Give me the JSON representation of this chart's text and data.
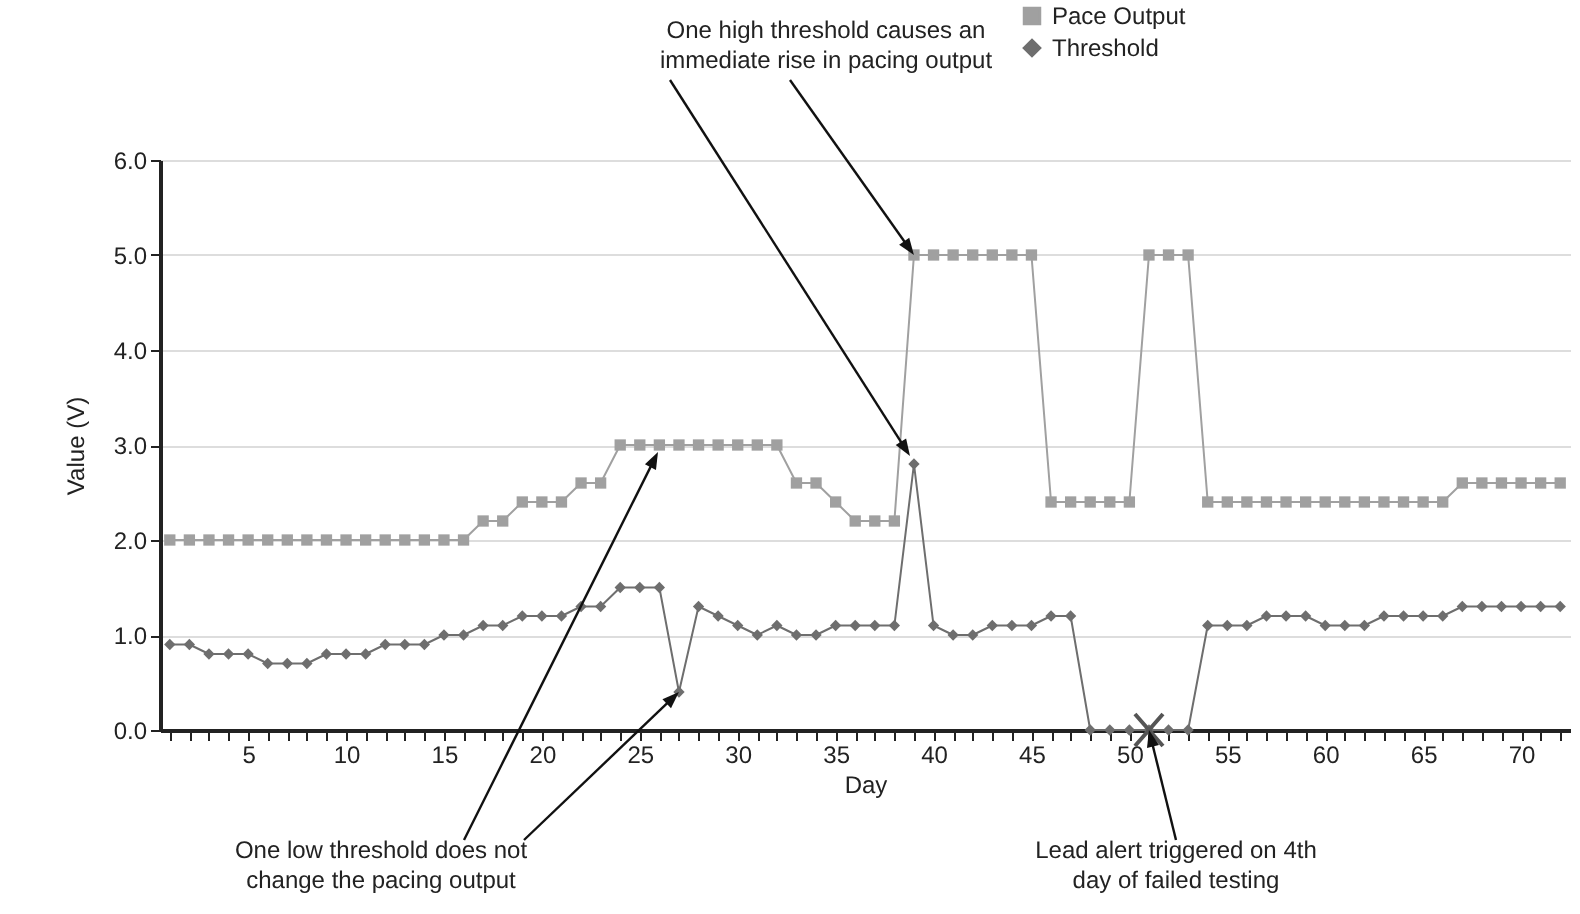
{
  "chart_data": {
    "type": "line",
    "xlabel": "Day",
    "ylabel": "Value (V)",
    "legend": "top right",
    "grid": "y",
    "x": [
      1,
      2,
      3,
      4,
      5,
      6,
      7,
      8,
      9,
      10,
      11,
      12,
      13,
      14,
      15,
      16,
      17,
      18,
      19,
      20,
      21,
      22,
      23,
      24,
      25,
      26,
      27,
      28,
      29,
      30,
      31,
      32,
      33,
      34,
      35,
      36,
      37,
      38,
      39,
      40,
      41,
      42,
      43,
      44,
      45,
      46,
      47,
      48,
      49,
      50,
      51,
      52,
      53,
      54,
      55,
      56,
      57,
      58,
      59,
      60,
      61,
      62,
      63,
      64,
      65,
      66,
      67,
      68,
      69,
      70,
      71,
      72
    ],
    "xlim": [
      0.5,
      72.5
    ],
    "xticks": [
      {
        "value": 1,
        "label": null
      },
      {
        "value": 2,
        "label": null
      },
      {
        "value": 3,
        "label": null
      },
      {
        "value": 4,
        "label": null
      },
      5,
      {
        "value": 6,
        "label": null
      },
      {
        "value": 7,
        "label": null
      },
      {
        "value": 8,
        "label": null
      },
      {
        "value": 9,
        "label": null
      },
      10,
      {
        "value": 11,
        "label": null
      },
      {
        "value": 12,
        "label": null
      },
      {
        "value": 13,
        "label": null
      },
      {
        "value": 14,
        "label": null
      },
      15,
      {
        "value": 16,
        "label": null
      },
      {
        "value": 17,
        "label": null
      },
      {
        "value": 18,
        "label": null
      },
      {
        "value": 19,
        "label": null
      },
      20,
      {
        "value": 21,
        "label": null
      },
      {
        "value": 22,
        "label": null
      },
      {
        "value": 23,
        "label": null
      },
      {
        "value": 24,
        "label": null
      },
      25,
      {
        "value": 26,
        "label": null
      },
      {
        "value": 27,
        "label": null
      },
      {
        "value": 28,
        "label": null
      },
      {
        "value": 29,
        "label": null
      },
      30,
      {
        "value": 31,
        "label": null
      },
      {
        "value": 32,
        "label": null
      },
      {
        "value": 33,
        "label": null
      },
      {
        "value": 34,
        "label": null
      },
      35,
      {
        "value": 36,
        "label": null
      },
      {
        "value": 37,
        "label": null
      },
      {
        "value": 38,
        "label": null
      },
      {
        "value": 39,
        "label": null
      },
      40,
      {
        "value": 41,
        "label": null
      },
      {
        "value": 42,
        "label": null
      },
      {
        "value": 43,
        "label": null
      },
      {
        "value": 44,
        "label": null
      },
      45,
      {
        "value": 46,
        "label": null
      },
      {
        "value": 47,
        "label": null
      },
      {
        "value": 48,
        "label": null
      },
      {
        "value": 49,
        "label": null
      },
      50,
      {
        "value": 51,
        "label": null
      },
      {
        "value": 52,
        "label": null
      },
      {
        "value": 53,
        "label": null
      },
      {
        "value": 54,
        "label": null
      },
      55,
      {
        "value": 56,
        "label": null
      },
      {
        "value": 57,
        "label": null
      },
      {
        "value": 58,
        "label": null
      },
      {
        "value": 59,
        "label": null
      },
      60,
      {
        "value": 61,
        "label": null
      },
      {
        "value": 62,
        "label": null
      },
      {
        "value": 63,
        "label": null
      },
      {
        "value": 64,
        "label": null
      },
      65,
      {
        "value": 66,
        "label": null
      },
      {
        "value": 67,
        "label": null
      },
      {
        "value": 68,
        "label": null
      },
      {
        "value": 69,
        "label": null
      },
      70,
      {
        "value": 71,
        "label": null
      },
      {
        "value": 72,
        "label": null
      }
    ],
    "ylim": [
      0,
      6
    ],
    "yticks": [
      {
        "value": 0,
        "label": "0.0"
      },
      {
        "value": 1,
        "label": "1.0"
      },
      {
        "value": 2,
        "label": "2.0"
      },
      {
        "value": 3,
        "label": "3.0"
      },
      {
        "value": 4,
        "label": "4.0"
      },
      {
        "value": 5,
        "label": "5.0"
      },
      {
        "value": 6,
        "label": "6.0"
      }
    ],
    "series": [
      {
        "name": "Pace Output",
        "color": "#a0a0a0",
        "marker": "square",
        "values": [
          2,
          2,
          2,
          2,
          2,
          2,
          2,
          2,
          2,
          2,
          2,
          2,
          2,
          2,
          2,
          2,
          2.2,
          2.2,
          2.4,
          2.4,
          2.4,
          2.6,
          2.6,
          3,
          3,
          3,
          3,
          3,
          3,
          3,
          3,
          3,
          2.6,
          2.6,
          2.4,
          2.2,
          2.2,
          2.2,
          5,
          5,
          5,
          5,
          5,
          5,
          5,
          2.4,
          2.4,
          2.4,
          2.4,
          2.4,
          5,
          5,
          5,
          2.4,
          2.4,
          2.4,
          2.4,
          2.4,
          2.4,
          2.4,
          2.4,
          2.4,
          2.4,
          2.4,
          2.4,
          2.4,
          2.6,
          2.6,
          2.6,
          2.6,
          2.6,
          2.6
        ]
      },
      {
        "name": "Threshold",
        "color": "#6e6e6e",
        "marker": "diamond",
        "values": [
          0.9,
          0.9,
          0.8,
          0.8,
          0.8,
          0.7,
          0.7,
          0.7,
          0.8,
          0.8,
          0.8,
          0.9,
          0.9,
          0.9,
          1,
          1,
          1.1,
          1.1,
          1.2,
          1.2,
          1.2,
          1.3,
          1.3,
          1.5,
          1.5,
          1.5,
          0.4,
          1.3,
          1.2,
          1.1,
          1,
          1.1,
          1,
          1,
          1.1,
          1.1,
          1.1,
          1.1,
          2.8,
          1.1,
          1,
          1,
          1.1,
          1.1,
          1.1,
          1.2,
          1.2,
          0,
          0,
          0,
          0,
          0,
          0,
          1.1,
          1.1,
          1.1,
          1.2,
          1.2,
          1.2,
          1.1,
          1.1,
          1.1,
          1.2,
          1.2,
          1.2,
          1.2,
          1.3,
          1.3,
          1.3,
          1.3,
          1.3,
          1.3
        ]
      }
    ],
    "annotations": [
      {
        "text": "One high threshold causes an immediate rise in pacing output",
        "x": 39,
        "y": 5
      },
      {
        "text": "One low threshold does not change the pacing output",
        "x": 27,
        "y": 0.4
      },
      {
        "text": "Lead alert triggered on 4th day of failed testing",
        "x": 51,
        "y": 0
      }
    ]
  }
}
